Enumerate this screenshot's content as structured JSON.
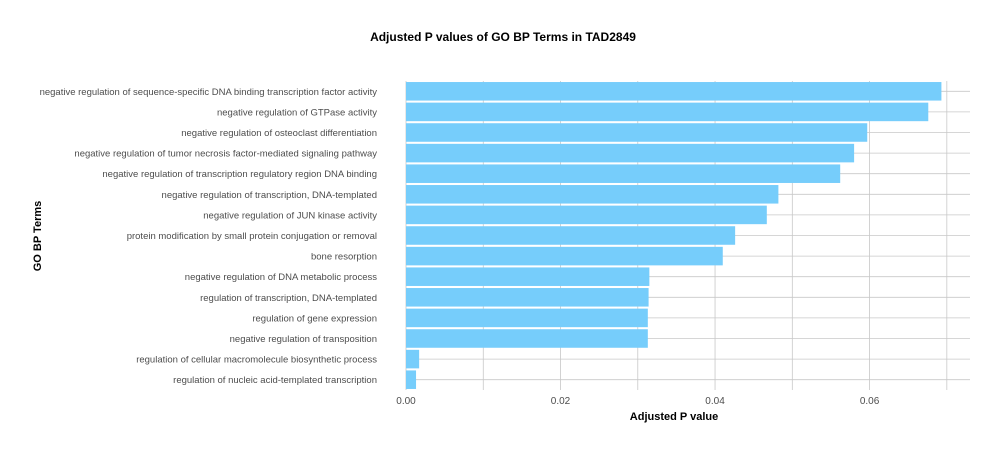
{
  "chart_data": {
    "type": "bar",
    "orientation": "horizontal",
    "title": "Adjusted P values of GO BP Terms in TAD2849",
    "xlabel": "Adjusted P value",
    "ylabel": "GO BP Terms",
    "xlim": [
      0,
      0.073
    ],
    "xticks": [
      0.0,
      0.02,
      0.04,
      0.06
    ],
    "xtick_labels": [
      "0.00",
      "0.02",
      "0.04",
      "0.06"
    ],
    "grid": true,
    "bar_color": "#76cdfb",
    "categories": [
      "negative regulation of sequence-specific DNA binding transcription factor activity",
      "negative regulation of GTPase activity",
      "negative regulation of osteoclast differentiation",
      "negative regulation of tumor necrosis factor-mediated signaling pathway",
      "negative regulation of transcription regulatory region DNA binding",
      "negative regulation of transcription, DNA-templated",
      "negative regulation of JUN kinase activity",
      "protein modification by small protein conjugation or removal",
      "bone resorption",
      "negative regulation of DNA metabolic process",
      "regulation of transcription, DNA-templated",
      "regulation of gene expression",
      "negative regulation of transposition",
      "regulation of cellular macromolecule biosynthetic process",
      "regulation of nucleic acid-templated transcription"
    ],
    "values": [
      0.0693,
      0.0676,
      0.0597,
      0.058,
      0.0562,
      0.0482,
      0.0467,
      0.0426,
      0.041,
      0.0315,
      0.0314,
      0.0313,
      0.0313,
      0.0017,
      0.0013
    ]
  }
}
